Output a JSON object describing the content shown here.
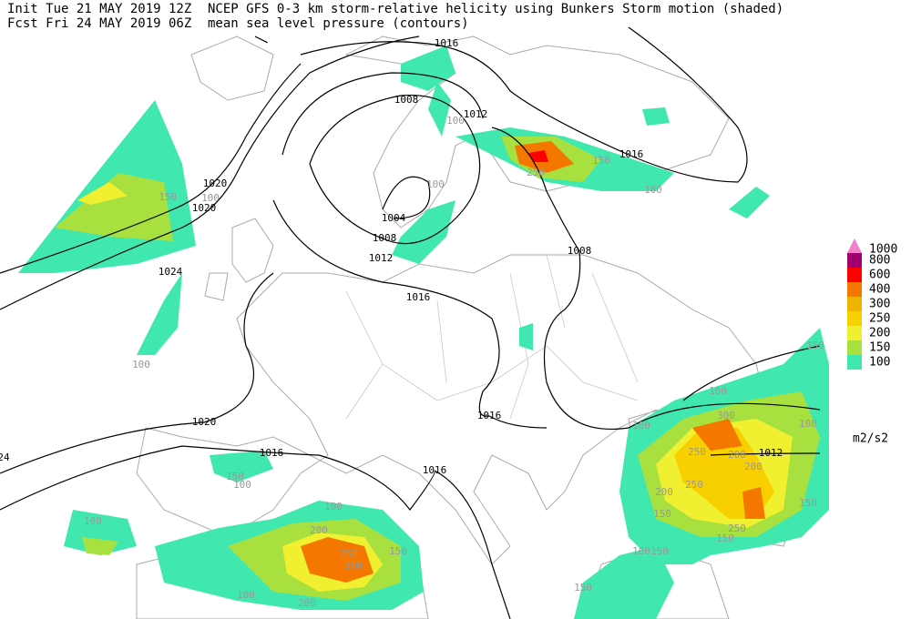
{
  "header": {
    "init": "Init  Tue 21 MAY 2019 12Z",
    "forecast": "Fcst Fri 24 MAY 2019 06Z",
    "title": "NCEP GFS 0-3 km storm-relative helicity using Bunkers Storm motion (shaded)",
    "subtitle": "mean sea level pressure (contours)"
  },
  "legend": {
    "unit": "m2/s2",
    "levels": [
      {
        "value": 1000,
        "color": "#f080c8"
      },
      {
        "value": 800,
        "color": "#a00070"
      },
      {
        "value": 600,
        "color": "#ff0000"
      },
      {
        "value": 400,
        "color": "#f47800"
      },
      {
        "value": 300,
        "color": "#f0b400"
      },
      {
        "value": 250,
        "color": "#f8d000"
      },
      {
        "value": 200,
        "color": "#f0f030"
      },
      {
        "value": 150,
        "color": "#a8e040"
      },
      {
        "value": 100,
        "color": "#40e8b0"
      }
    ]
  },
  "contour_labels": [
    1016,
    1008,
    1012,
    1016,
    1020,
    1020,
    1024,
    1004,
    1008,
    1012,
    1016,
    1008,
    1020,
    1016,
    1016,
    1016,
    1012,
    24
  ],
  "shading_labels": [
    100,
    150,
    100,
    100,
    150,
    100,
    250,
    100,
    150,
    100,
    300,
    100,
    100,
    250,
    200,
    200,
    250,
    200,
    150,
    250,
    150,
    150,
    100,
    150,
    150,
    100,
    200,
    250,
    300,
    150,
    100,
    150,
    100,
    100,
    200
  ]
}
